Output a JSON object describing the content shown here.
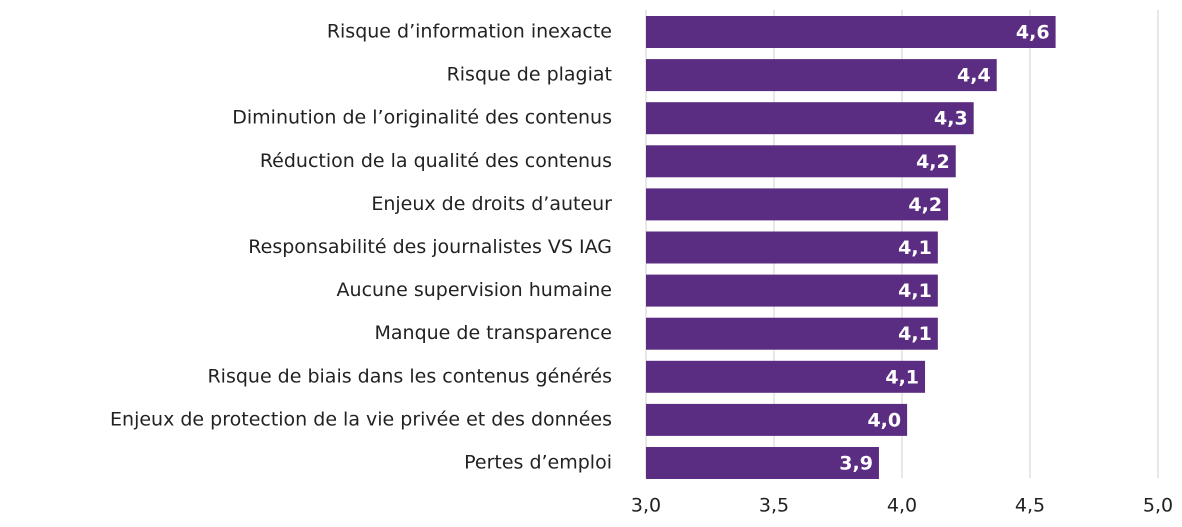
{
  "chart_data": {
    "type": "barh",
    "categories": [
      "Risque d’information inexacte",
      "Risque de plagiat",
      "Diminution de l’originalité des contenus",
      "Réduction de la qualité des contenus",
      "Enjeux de droits d’auteur",
      "Responsabilité des journalistes VS IAG",
      "Aucune supervision humaine",
      "Manque de transparence",
      "Risque de biais dans les contenus générés",
      "Enjeux de protection de la vie privée et des données",
      "Pertes d’emploi"
    ],
    "values": [
      4.6,
      4.37,
      4.28,
      4.21,
      4.18,
      4.14,
      4.14,
      4.14,
      4.09,
      4.02,
      3.91
    ],
    "value_labels": [
      "4,6",
      "4,4",
      "4,3",
      "4,2",
      "4,2",
      "4,1",
      "4,1",
      "4,1",
      "4,1",
      "4,0",
      "3,9"
    ],
    "color": "#5b2d82",
    "xlim": [
      3,
      5
    ],
    "xticks": [
      {
        "value": 3,
        "label": "3,0"
      },
      {
        "value": 3.5,
        "label": "3,5"
      },
      {
        "value": 4,
        "label": "4,0"
      },
      {
        "value": 4.5,
        "label": "4,5"
      },
      {
        "value": 5,
        "label": "5,0"
      }
    ],
    "grid": true
  }
}
